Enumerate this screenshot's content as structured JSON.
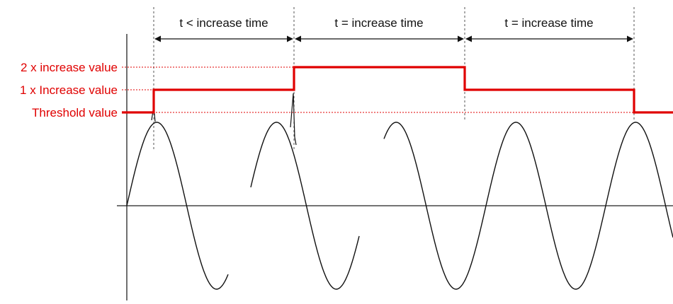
{
  "levels": {
    "double": "2 x increase value",
    "single": "1 x Increase value",
    "threshold": "Threshold value"
  },
  "intervals": [
    {
      "label": "t < increase time"
    },
    {
      "label": "t = increase time"
    },
    {
      "label": "t = increase time"
    }
  ],
  "colors": {
    "threshold_line": "#e00000",
    "waveform": "#111111",
    "guides": "#555555"
  }
}
